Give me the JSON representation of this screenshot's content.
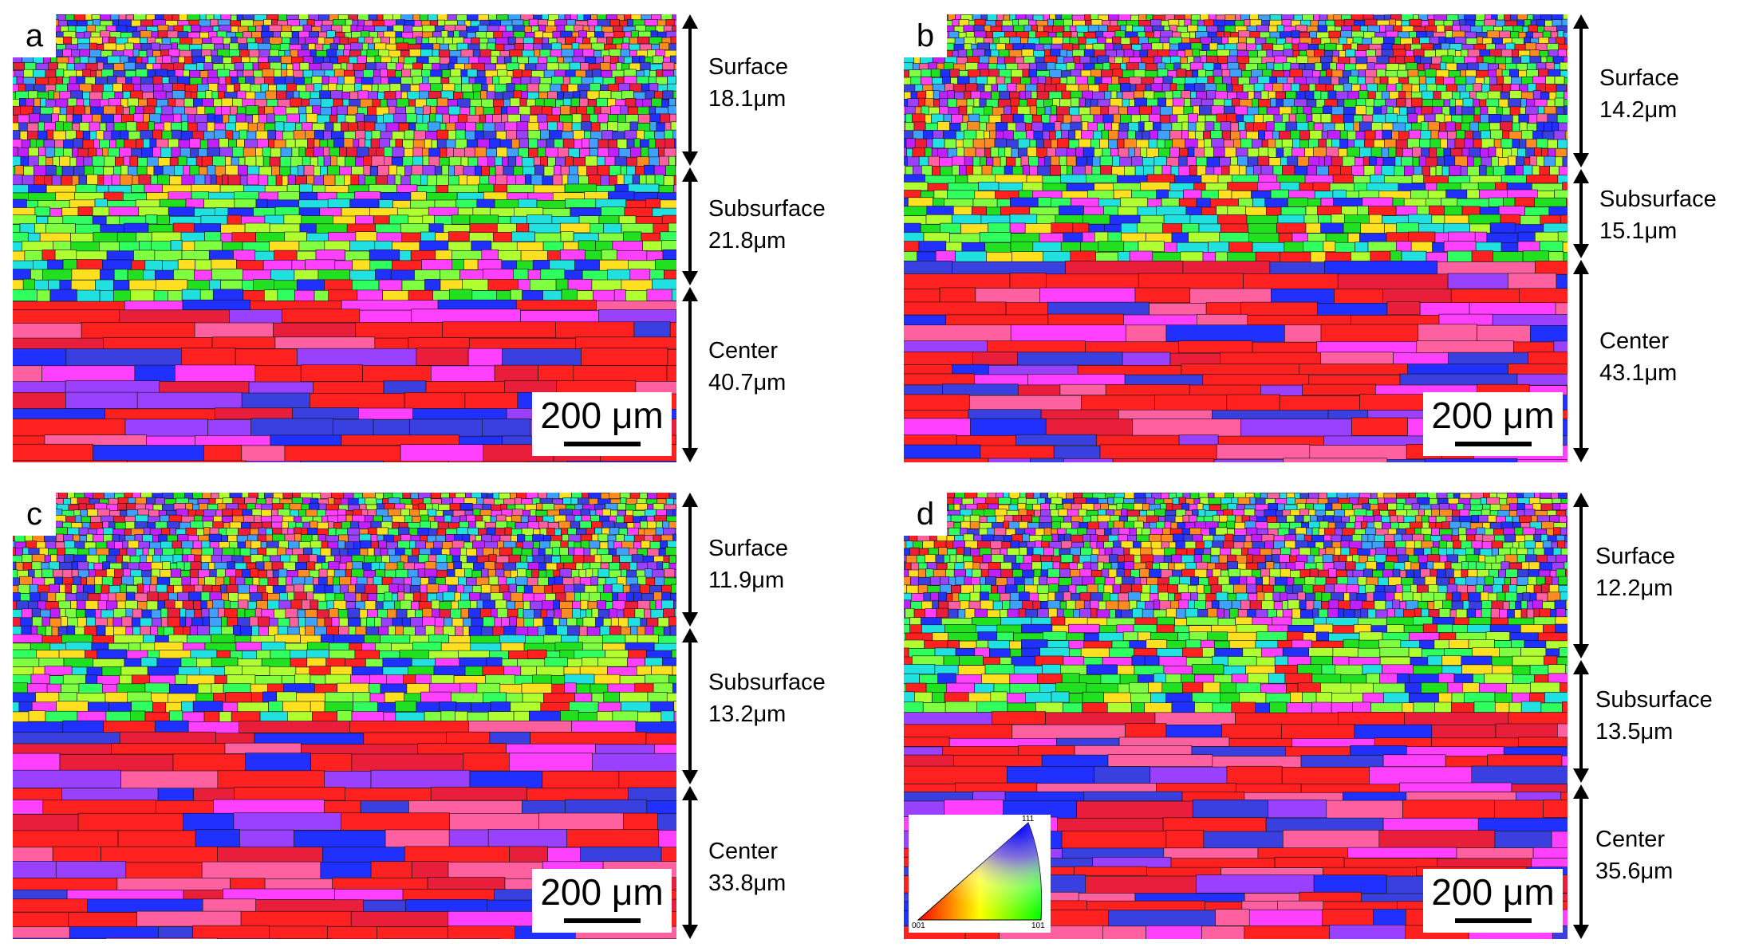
{
  "panels": [
    {
      "letter": "a",
      "scale_bar": "200 μm",
      "regions": [
        {
          "name": "Surface",
          "grain_size": "18.1μm"
        },
        {
          "name": "Subsurface",
          "grain_size": "21.8μm"
        },
        {
          "name": "Center",
          "grain_size": "40.7μm"
        }
      ]
    },
    {
      "letter": "b",
      "scale_bar": "200 μm",
      "regions": [
        {
          "name": "Surface",
          "grain_size": "14.2μm"
        },
        {
          "name": "Subsurface",
          "grain_size": "15.1μm"
        },
        {
          "name": "Center",
          "grain_size": "43.1μm"
        }
      ]
    },
    {
      "letter": "c",
      "scale_bar": "200 μm",
      "regions": [
        {
          "name": "Surface",
          "grain_size": "11.9μm"
        },
        {
          "name": "Subsurface",
          "grain_size": "13.2μm"
        },
        {
          "name": "Center",
          "grain_size": "33.8μm"
        }
      ]
    },
    {
      "letter": "d",
      "scale_bar": "200 μm",
      "regions": [
        {
          "name": "Surface",
          "grain_size": "12.2μm"
        },
        {
          "name": "Subsurface",
          "grain_size": "13.5μm"
        },
        {
          "name": "Center",
          "grain_size": "35.6μm"
        }
      ]
    }
  ],
  "ipf_legend": {
    "corners": [
      "001",
      "101",
      "111"
    ],
    "colors": {
      "001": "#ff0000",
      "101": "#00ff00",
      "111": "#0000ff"
    }
  }
}
